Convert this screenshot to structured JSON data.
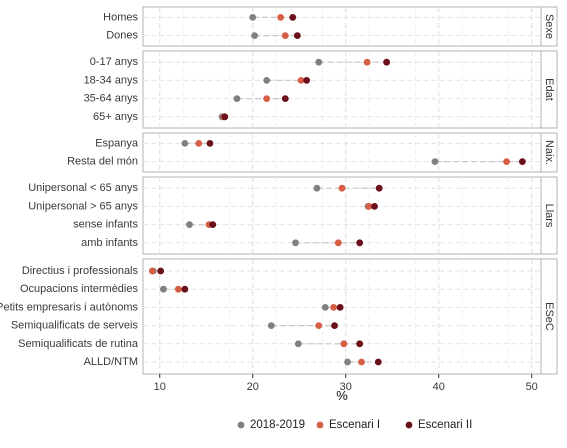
{
  "chart_data": {
    "type": "scatter",
    "subtype": "dumbbell",
    "xlabel": "%",
    "xlim": [
      8.2,
      51
    ],
    "xticks": [
      10,
      20,
      30,
      40,
      50
    ],
    "grid": true,
    "legend_position": "bottom",
    "series": [
      {
        "name": "2018-2019",
        "color": "#808080"
      },
      {
        "name": "Escenari I",
        "color": "#d55e45"
      },
      {
        "name": "Escenari II",
        "color": "#6b0f1a"
      }
    ],
    "panels": [
      {
        "strip": "Sexe",
        "rows": [
          {
            "label": "Homes",
            "values": [
              20.0,
              23.0,
              24.3
            ]
          },
          {
            "label": "Dones",
            "values": [
              20.2,
              23.5,
              24.8
            ]
          }
        ]
      },
      {
        "strip": "Edat",
        "rows": [
          {
            "label": "0-17 anys",
            "values": [
              27.1,
              32.3,
              34.4
            ]
          },
          {
            "label": "18-34 anys",
            "values": [
              21.5,
              25.2,
              25.8
            ]
          },
          {
            "label": "35-64 anys",
            "values": [
              18.3,
              21.5,
              23.5
            ]
          },
          {
            "label": "65+ anys",
            "values": [
              16.7,
              16.9,
              17.0
            ]
          }
        ]
      },
      {
        "strip": "Naix.",
        "rows": [
          {
            "label": "Espanya",
            "values": [
              12.7,
              14.2,
              15.4
            ]
          },
          {
            "label": "Resta del món",
            "values": [
              39.6,
              47.3,
              49.0
            ]
          }
        ]
      },
      {
        "strip": "Llars",
        "rows": [
          {
            "label": "Unipersonal < 65 anys",
            "values": [
              26.9,
              29.6,
              33.6
            ]
          },
          {
            "label": "Unipersonal > 65 anys",
            "values": [
              32.4,
              32.5,
              33.1
            ]
          },
          {
            "label": "sense infants",
            "values": [
              13.2,
              15.3,
              15.7
            ]
          },
          {
            "label": "amb infants",
            "values": [
              24.6,
              29.2,
              31.5
            ]
          }
        ]
      },
      {
        "strip": "ESeC",
        "rows": [
          {
            "label": "Directius i professionals",
            "values": [
              9.3,
              9.2,
              10.1
            ]
          },
          {
            "label": "Ocupacions intermèdies",
            "values": [
              10.4,
              12.0,
              12.7
            ]
          },
          {
            "label": "Petits empresaris i autònoms",
            "values": [
              27.8,
              28.7,
              29.4
            ]
          },
          {
            "label": "Semiqualificats de serveis",
            "values": [
              22.0,
              27.1,
              28.8
            ]
          },
          {
            "label": "Semiqualificats de rutina",
            "values": [
              24.9,
              29.8,
              31.5
            ]
          },
          {
            "label": "ALLD/NTM",
            "values": [
              30.2,
              31.7,
              33.5
            ]
          }
        ]
      }
    ]
  }
}
